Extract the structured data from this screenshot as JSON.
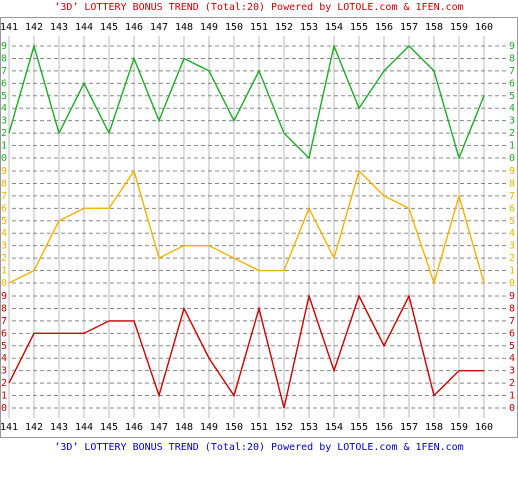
{
  "title": "’3D’ LOTTERY BONUS TREND (Total:20)  Powered by LOTOLE.com & 1FEN.com",
  "footer": "’3D’ LOTTERY BONUS TREND (Total:20)  Powered by LOTOLE.com & 1FEN.com",
  "categories": [
    "141",
    "142",
    "143",
    "144",
    "145",
    "146",
    "147",
    "148",
    "149",
    "150",
    "151",
    "152",
    "153",
    "154",
    "155",
    "156",
    "157",
    "158",
    "159",
    "160"
  ],
  "chart_data": [
    {
      "type": "line",
      "color": "#1faa2a",
      "ylim": [
        0,
        9
      ],
      "yticks": [
        0,
        1,
        2,
        3,
        4,
        5,
        6,
        7,
        8,
        9
      ],
      "grid": true,
      "values": [
        2,
        9,
        2,
        6,
        2,
        8,
        3,
        8,
        7,
        3,
        7,
        2,
        0,
        9,
        4,
        7,
        9,
        7,
        0,
        5
      ]
    },
    {
      "type": "line",
      "color": "#f0b400",
      "ylim": [
        0,
        9
      ],
      "yticks": [
        0,
        1,
        2,
        3,
        4,
        5,
        6,
        7,
        8,
        9
      ],
      "grid": true,
      "values": [
        0,
        1,
        5,
        6,
        6,
        9,
        2,
        3,
        3,
        2,
        1,
        1,
        6,
        2,
        9,
        7,
        6,
        0,
        7,
        0
      ]
    },
    {
      "type": "line",
      "color": "#cc0000",
      "ylim": [
        0,
        9
      ],
      "yticks": [
        0,
        1,
        2,
        3,
        4,
        5,
        6,
        7,
        8,
        9
      ],
      "grid": true,
      "values": [
        2,
        6,
        6,
        6,
        7,
        7,
        1,
        8,
        4,
        1,
        8,
        0,
        9,
        3,
        9,
        5,
        9,
        1,
        3,
        3
      ]
    }
  ]
}
